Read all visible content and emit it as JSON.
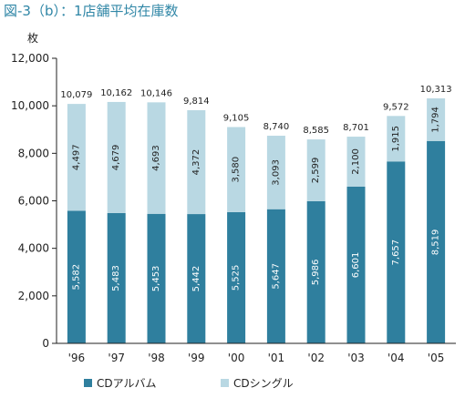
{
  "title": "図-3（b）：1店舗平均在庫数",
  "unit": "枚",
  "chart_data": {
    "type": "bar",
    "stacked": true,
    "categories": [
      "'96",
      "'97",
      "'98",
      "'99",
      "'00",
      "'01",
      "'02",
      "'03",
      "'04",
      "'05"
    ],
    "series": [
      {
        "name": "CDアルバム",
        "values": [
          5582,
          5483,
          5453,
          5442,
          5525,
          5647,
          5986,
          6601,
          7657,
          8519
        ],
        "labels": [
          "5,582",
          "5,483",
          "5,453",
          "5,442",
          "5,525",
          "5,647",
          "5,986",
          "6,601",
          "7,657",
          "8,519"
        ],
        "color": "#2f7f9e"
      },
      {
        "name": "CDシングル",
        "values": [
          4497,
          4679,
          4693,
          4372,
          3580,
          3093,
          2599,
          2100,
          1915,
          1794
        ],
        "labels": [
          "4,497",
          "4,679",
          "4,693",
          "4,372",
          "3,580",
          "3,093",
          "2,599",
          "2,100",
          "1,915",
          "1,794"
        ],
        "color": "#b9d8e3"
      }
    ],
    "totals": [
      "10,079",
      "10,162",
      "10,146",
      "9,814",
      "9,105",
      "8,740",
      "8,585",
      "8,701",
      "9,572",
      "10,313"
    ],
    "ylim": [
      0,
      12000
    ],
    "yticks": [
      0,
      2000,
      4000,
      6000,
      8000,
      10000,
      12000
    ],
    "ytick_labels": [
      "0",
      "2,000",
      "4,000",
      "6,000",
      "8,000",
      "10,000",
      "12,000"
    ],
    "grid": false,
    "legend_position": "bottom-left"
  }
}
